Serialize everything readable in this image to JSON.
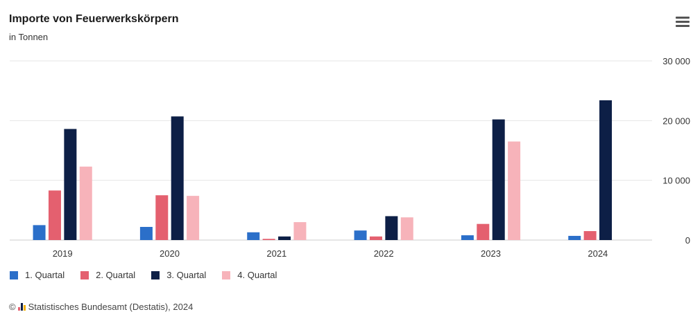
{
  "header": {
    "title": "Importe von Feuerwerkskörpern",
    "subtitle": "in Tonnen"
  },
  "footer": {
    "copyright_symbol": "©",
    "source": "Statistisches Bundesamt (Destatis), 2024"
  },
  "menu": {
    "icon": "hamburger-menu-icon"
  },
  "colors": {
    "q1": "#2b6fc9",
    "q2": "#e4606f",
    "q3": "#0d1f46",
    "q4": "#f7b3ba",
    "grid": "#e6e6e6",
    "axis_text": "#333333"
  },
  "chart_data": {
    "type": "bar",
    "title": "Importe von Feuerwerkskörpern",
    "subtitle": "in Tonnen",
    "categories": [
      "2019",
      "2020",
      "2021",
      "2022",
      "2023",
      "2024"
    ],
    "series": [
      {
        "name": "1. Quartal",
        "values": [
          2500,
          2200,
          1300,
          1600,
          800,
          700
        ]
      },
      {
        "name": "2. Quartal",
        "values": [
          8300,
          7500,
          200,
          600,
          2700,
          1500
        ]
      },
      {
        "name": "3. Quartal",
        "values": [
          18600,
          20700,
          600,
          4000,
          20200,
          23400
        ]
      },
      {
        "name": "4. Quartal",
        "values": [
          12300,
          7400,
          3000,
          3800,
          16500,
          null
        ]
      }
    ],
    "yticks": [
      "0",
      "10 000",
      "20 000",
      "30 000"
    ],
    "ylim": [
      0,
      30000
    ],
    "xlabel": "",
    "ylabel": "",
    "y_axis_position": "right",
    "grid": true,
    "legend_position": "bottom-left"
  }
}
